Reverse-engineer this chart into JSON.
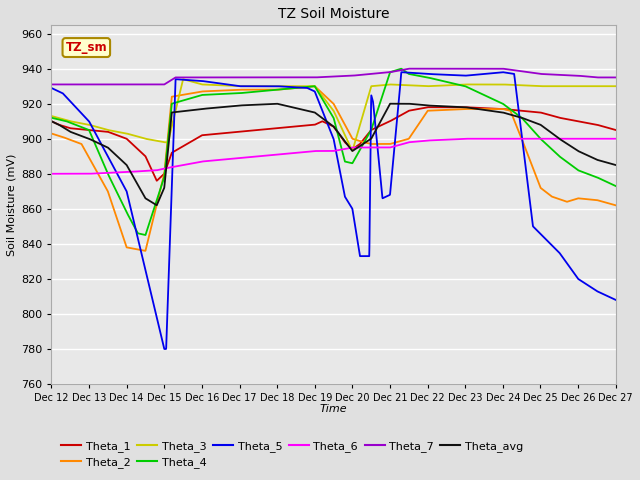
{
  "title": "TZ Soil Moisture",
  "xlabel": "Time",
  "ylabel": "Soil Moisture (mV)",
  "ylim": [
    760,
    965
  ],
  "yticks": [
    760,
    780,
    800,
    820,
    840,
    860,
    880,
    900,
    920,
    940,
    960
  ],
  "bg_color": "#e0e0e0",
  "plot_bg_color": "#e8e8e8",
  "box_label": "TZ_sm",
  "box_color": "#ffffcc",
  "box_border": "#aa8800",
  "box_text_color": "#cc0000",
  "colors": {
    "Theta_1": "#cc0000",
    "Theta_2": "#ff8800",
    "Theta_3": "#cccc00",
    "Theta_4": "#00cc00",
    "Theta_5": "#0000ee",
    "Theta_6": "#ff00ff",
    "Theta_7": "#9900cc",
    "Theta_avg": "#111111"
  },
  "xtick_labels": [
    "Dec 12",
    "Dec 13",
    "Dec 14",
    "Dec 15",
    "Dec 16",
    "Dec 17",
    "Dec 18",
    "Dec 19",
    "Dec 20",
    "Dec 21",
    "Dec 22",
    "Dec 23",
    "Dec 24",
    "Dec 25",
    "Dec 26",
    "Dec 27"
  ]
}
